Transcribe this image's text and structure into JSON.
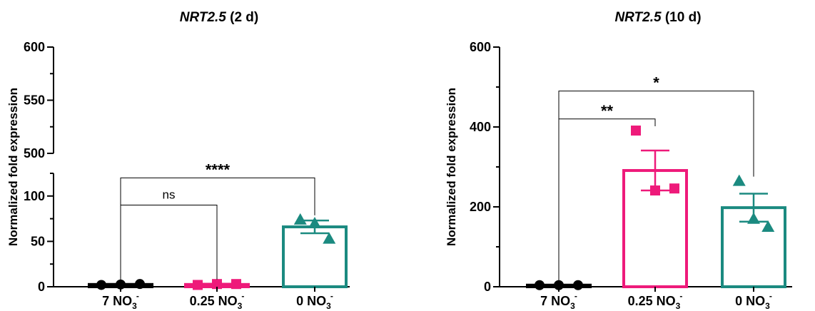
{
  "colors": {
    "black": "#000000",
    "pink": "#ee1a7a",
    "teal": "#1b8a80"
  },
  "chart_data": [
    {
      "type": "bar",
      "title_gene": "NRT2.5",
      "title_suffix": " (2 d)",
      "ylabel": "Normalized fold expression",
      "broken_axis": true,
      "ylim_lower": [
        0,
        125
      ],
      "ylim_upper": [
        500,
        600
      ],
      "yticks_lower": [
        "0",
        "50",
        "100"
      ],
      "yticks_upper": [
        "500",
        "550",
        "600"
      ],
      "categories": [
        {
          "main": "7 NO",
          "sub": "3",
          "sup": "-"
        },
        {
          "main": "0.25 NO",
          "sub": "3",
          "sup": "-"
        },
        {
          "main": "0 NO",
          "sub": "3",
          "sup": "-"
        }
      ],
      "series": [
        {
          "color": "#000000",
          "marker": "circle",
          "mean": 2.5,
          "sem": 0.5,
          "points": [
            2,
            2.5,
            3
          ]
        },
        {
          "color": "#ee1a7a",
          "marker": "square",
          "mean": 2.5,
          "sem": 0.8,
          "points": [
            2,
            3,
            3
          ]
        },
        {
          "color": "#1b8a80",
          "marker": "triangle",
          "mean": 66,
          "sem": 7,
          "points": [
            74,
            70,
            53
          ]
        }
      ],
      "significance": [
        {
          "label": "ns",
          "from": 0,
          "to": 1,
          "y": 90
        },
        {
          "label": "****",
          "from": 0,
          "to": 2,
          "y": 120
        }
      ]
    },
    {
      "type": "bar",
      "title_gene": "NRT2.5",
      "title_suffix": " (10 d)",
      "ylabel": "Normalized fold expression",
      "broken_axis": false,
      "ylim": [
        0,
        600
      ],
      "yticks": [
        "0",
        "200",
        "400",
        "600"
      ],
      "categories": [
        {
          "main": "7 NO",
          "sub": "3",
          "sup": "-"
        },
        {
          "main": "0.25 NO",
          "sub": "3",
          "sup": "-"
        },
        {
          "main": "0 NO",
          "sub": "3",
          "sup": "-"
        }
      ],
      "series": [
        {
          "color": "#000000",
          "marker": "circle",
          "mean": 4,
          "sem": 1,
          "points": [
            4,
            4,
            4
          ]
        },
        {
          "color": "#ee1a7a",
          "marker": "square",
          "mean": 291,
          "sem": 50,
          "points": [
            391,
            241,
            246
          ]
        },
        {
          "color": "#1b8a80",
          "marker": "triangle",
          "mean": 198,
          "sem": 35,
          "points": [
            265,
            170,
            150
          ]
        }
      ],
      "significance": [
        {
          "label": "**",
          "from": 0,
          "to": 1,
          "y": 420
        },
        {
          "label": "*",
          "from": 0,
          "to": 2,
          "y": 490
        }
      ]
    }
  ]
}
